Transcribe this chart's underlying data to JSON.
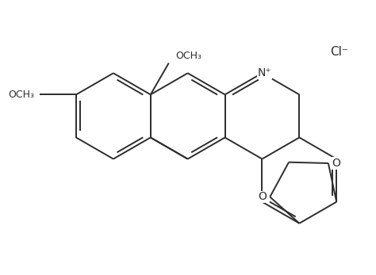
{
  "background_color": "#ffffff",
  "line_color": "#2d2d2d",
  "line_width": 1.4,
  "font_size": 10,
  "figsize": [
    4.74,
    3.47
  ],
  "dpi": 100,
  "cl_label": "Cl⁻",
  "n_label": "N⁺",
  "meo_upper": "OCH₃",
  "meo_left": "OCH₃"
}
